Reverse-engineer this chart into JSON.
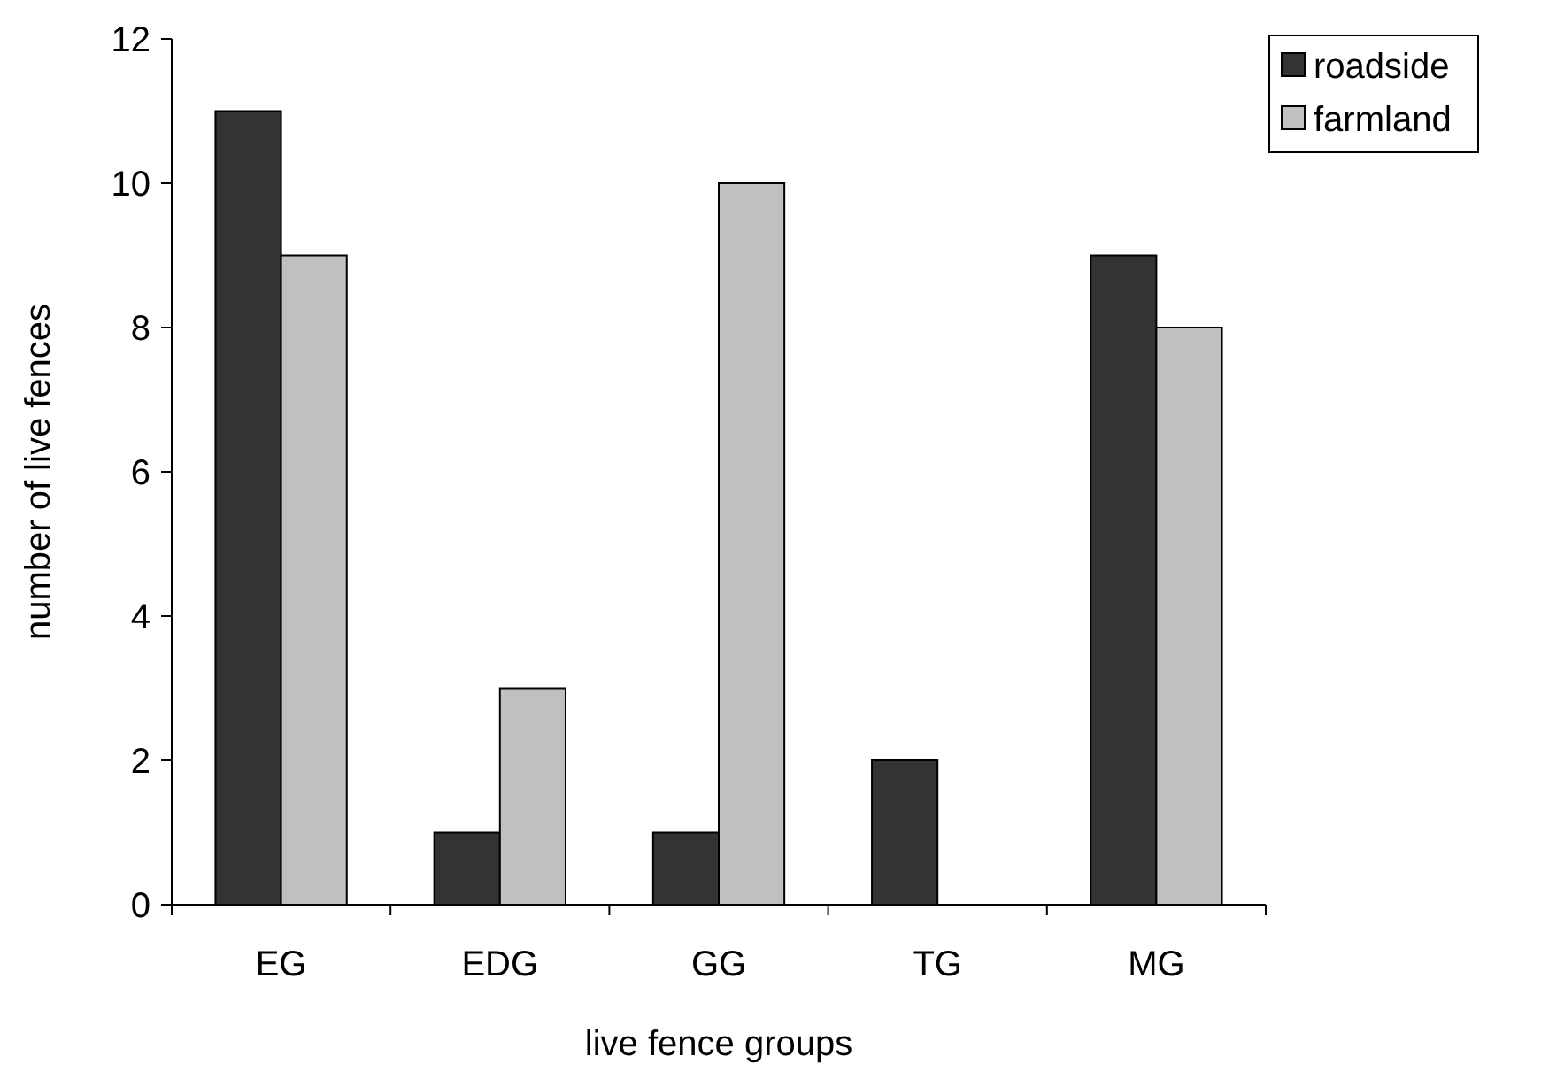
{
  "chart_data": {
    "type": "bar",
    "xlabel": "live fence groups",
    "ylabel": "number of live fences",
    "categories": [
      "EG",
      "EDG",
      "GG",
      "TG",
      "MG"
    ],
    "series": [
      {
        "name": "roadside",
        "color": "#333333",
        "values": [
          11,
          1,
          1,
          2,
          9
        ]
      },
      {
        "name": "farmland",
        "color": "#c0c0c0",
        "values": [
          9,
          3,
          10,
          0,
          8
        ]
      }
    ],
    "ylim": [
      0,
      12
    ],
    "yticks": [
      0,
      2,
      4,
      6,
      8,
      10,
      12
    ],
    "grid": false,
    "legend": "top right"
  }
}
